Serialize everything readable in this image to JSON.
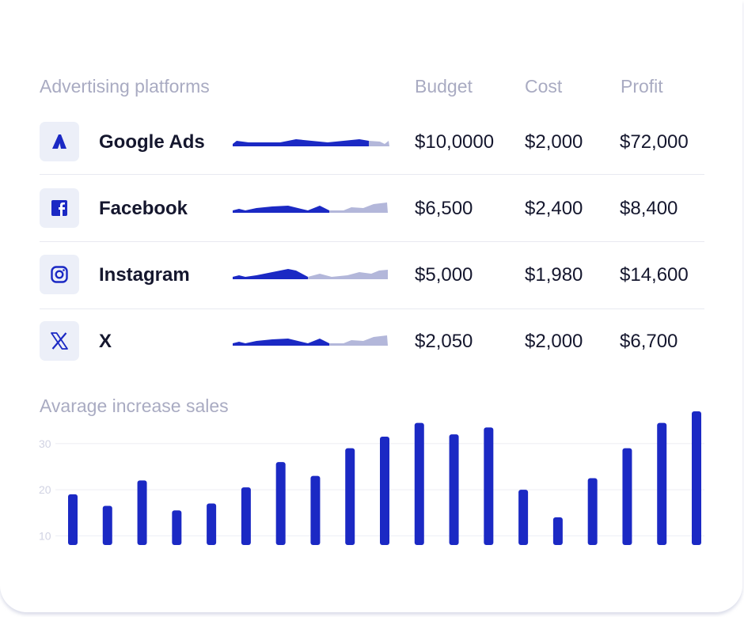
{
  "table": {
    "headers": {
      "platform": "Advertising platforms",
      "budget": "Budget",
      "cost": "Cost",
      "profit": "Profit"
    },
    "rows": [
      {
        "icon": "google-ads-icon",
        "name": "Google Ads",
        "budget": "$10,0000",
        "cost": "$2,000",
        "profit": "$72,000"
      },
      {
        "icon": "facebook-icon",
        "name": "Facebook",
        "budget": "$6,500",
        "cost": "$2,400",
        "profit": "$8,400"
      },
      {
        "icon": "instagram-icon",
        "name": "Instagram",
        "budget": "$5,000",
        "cost": "$1,980",
        "profit": "$14,600"
      },
      {
        "icon": "x-icon",
        "name": "X",
        "budget": "$2,050",
        "cost": "$2,000",
        "profit": "$6,700"
      }
    ]
  },
  "colors": {
    "accent": "#1b29c4",
    "muted": "#b3b7da",
    "text": "#15172e",
    "label": "#a9abc2"
  },
  "chart_data": {
    "type": "bar",
    "title": "Avarage increase sales",
    "yticks": [
      30,
      20,
      10
    ],
    "ylim": [
      8,
      37
    ],
    "grid": true,
    "values": [
      19,
      16.5,
      22,
      15.5,
      17,
      20.5,
      26,
      23,
      29,
      31.5,
      34.5,
      32,
      33.5,
      20,
      14,
      22.5,
      29,
      34.5,
      37
    ]
  }
}
